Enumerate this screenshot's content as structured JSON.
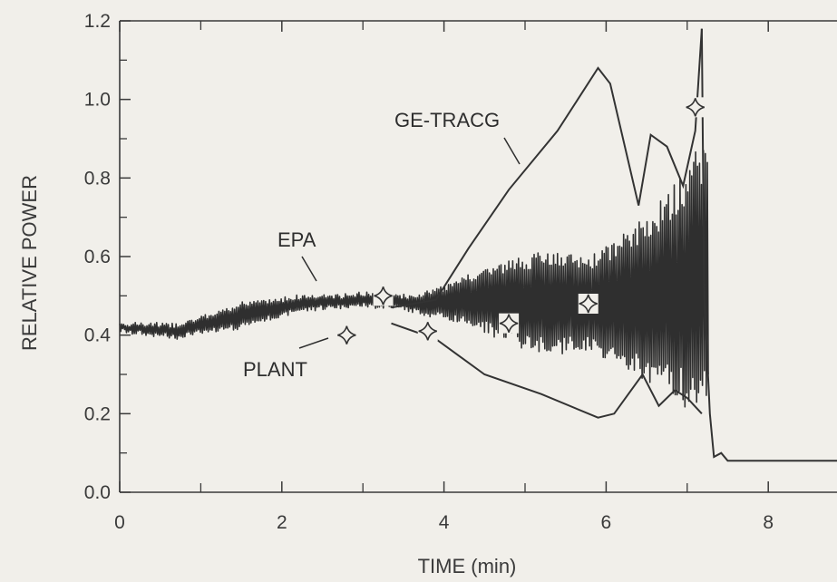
{
  "chart_data": {
    "type": "line",
    "title": "",
    "xlabel": "TIME (min)",
    "ylabel": "RELATIVE POWER",
    "xlim": [
      0,
      9
    ],
    "ylim": [
      0.0,
      1.2
    ],
    "x_ticks": [
      "0",
      "2",
      "4",
      "6",
      "8"
    ],
    "y_ticks": [
      "0.0",
      "0.2",
      "0.4",
      "0.6",
      "0.8",
      "1.0",
      "1.2"
    ],
    "grid": false,
    "legend": "none",
    "annotations": [
      {
        "text": "GE-TRACG",
        "points_to": [
          5.0,
          0.83
        ]
      },
      {
        "text": "EPA",
        "points_to": [
          2.4,
          0.52
        ]
      },
      {
        "text": "PLANT",
        "points_to": [
          2.55,
          0.42
        ]
      }
    ],
    "series": [
      {
        "name": "PLANT",
        "kind": "oscillation",
        "center": [
          [
            0,
            0.42
          ],
          [
            0.7,
            0.41
          ],
          [
            1.5,
            0.45
          ],
          [
            2.2,
            0.48
          ],
          [
            3,
            0.49
          ],
          [
            3.7,
            0.48
          ],
          [
            4.5,
            0.49
          ],
          [
            5.5,
            0.48
          ],
          [
            6.5,
            0.49
          ],
          [
            7,
            0.52
          ],
          [
            7.2,
            0.55
          ]
        ],
        "amplitude": [
          [
            0,
            0.01
          ],
          [
            1,
            0.02
          ],
          [
            1.5,
            0.03
          ],
          [
            2.5,
            0.015
          ],
          [
            3.5,
            0.015
          ],
          [
            4,
            0.04
          ],
          [
            4.5,
            0.08
          ],
          [
            5.2,
            0.13
          ],
          [
            5.8,
            0.12
          ],
          [
            6.3,
            0.18
          ],
          [
            6.9,
            0.28
          ],
          [
            7.15,
            0.36
          ],
          [
            7.25,
            0.3
          ]
        ]
      },
      {
        "name": "GE-TRACG",
        "upper": [
          [
            3.35,
            0.47
          ],
          [
            3.9,
            0.49
          ],
          [
            4.3,
            0.62
          ],
          [
            4.8,
            0.77
          ],
          [
            5.4,
            0.92
          ],
          [
            5.9,
            1.08
          ],
          [
            6.05,
            1.04
          ],
          [
            6.4,
            0.73
          ],
          [
            6.55,
            0.91
          ],
          [
            6.75,
            0.88
          ],
          [
            6.95,
            0.78
          ],
          [
            7.1,
            0.92
          ],
          [
            7.18,
            1.18
          ]
        ],
        "lower": [
          [
            3.35,
            0.43
          ],
          [
            3.9,
            0.39
          ],
          [
            4.5,
            0.3
          ],
          [
            5.2,
            0.25
          ],
          [
            5.9,
            0.19
          ],
          [
            6.1,
            0.2
          ],
          [
            6.45,
            0.3
          ],
          [
            6.65,
            0.22
          ],
          [
            6.85,
            0.26
          ],
          [
            7.0,
            0.24
          ],
          [
            7.18,
            0.2
          ]
        ],
        "tail": [
          [
            7.18,
            1.18
          ],
          [
            7.21,
            0.5
          ],
          [
            7.28,
            0.2
          ],
          [
            7.33,
            0.09
          ],
          [
            7.42,
            0.1
          ],
          [
            7.5,
            0.08
          ],
          [
            9,
            0.08
          ]
        ]
      },
      {
        "name": "EPA",
        "markers": [
          [
            2.8,
            0.4
          ],
          [
            3.25,
            0.5
          ],
          [
            3.8,
            0.41
          ],
          [
            4.8,
            0.43
          ],
          [
            5.78,
            0.48
          ],
          [
            7.1,
            0.98
          ]
        ]
      }
    ]
  }
}
